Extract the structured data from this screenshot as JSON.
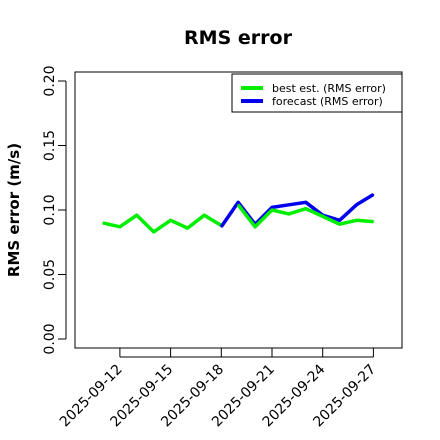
{
  "chart_data": {
    "type": "line",
    "title": "RMS error",
    "xlabel": "",
    "ylabel": "RMS error (m/s)",
    "ylim": [
      0,
      0.2
    ],
    "yticks": [
      "0.00",
      "0.05",
      "0.10",
      "0.15",
      "0.20"
    ],
    "x": [
      "2025-09-11",
      "2025-09-12",
      "2025-09-13",
      "2025-09-14",
      "2025-09-15",
      "2025-09-16",
      "2025-09-17",
      "2025-09-18",
      "2025-09-19",
      "2025-09-20",
      "2025-09-21",
      "2025-09-22",
      "2025-09-23",
      "2025-09-24",
      "2025-09-25",
      "2025-09-26",
      "2025-09-27"
    ],
    "xticks": [
      "2025-09-12",
      "2025-09-15",
      "2025-09-18",
      "2025-09-21",
      "2025-09-24",
      "2025-09-27"
    ],
    "highlight_tick": "2025-09-18",
    "highlight_color": "#228B22",
    "legend_position": "top-right",
    "grid": false,
    "series": [
      {
        "name": "best est. (RMS error)",
        "color": "#00ee00",
        "values": [
          0.09,
          0.087,
          0.096,
          0.083,
          0.092,
          0.086,
          0.096,
          0.088,
          null,
          null,
          null,
          null,
          null,
          null,
          null,
          null,
          null
        ]
      },
      {
        "name": "forecast (RMS error)",
        "color": "#0000ee",
        "values": [
          null,
          null,
          null,
          null,
          null,
          null,
          null,
          0.087,
          0.106,
          0.089,
          0.102,
          0.104,
          0.106,
          0.096,
          0.092,
          0.104,
          0.112
        ]
      },
      {
        "name": "best est. (RMS error)",
        "color": "#00ee00",
        "values": [
          null,
          null,
          null,
          null,
          null,
          null,
          null,
          null,
          0.104,
          0.087,
          0.1,
          0.097,
          0.101,
          0.095,
          0.089,
          0.092,
          0.091
        ]
      }
    ]
  }
}
